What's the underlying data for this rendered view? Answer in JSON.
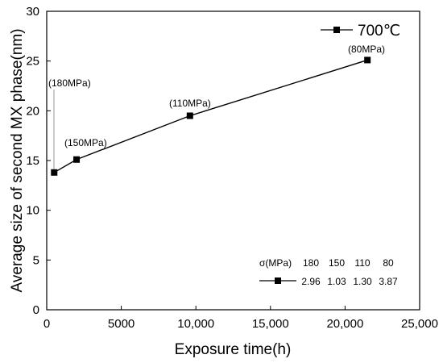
{
  "chart_data": {
    "type": "line",
    "xlabel": "Exposure time(h)",
    "ylabel": "Average size of second MX phase(nm)",
    "xlim": [
      0,
      25000
    ],
    "ylim": [
      0,
      30
    ],
    "x_ticks": [
      0,
      5000,
      10000,
      15000,
      20000,
      25000
    ],
    "x_tick_labels": [
      "0",
      "5000",
      "10,000",
      "15,000",
      "20,000",
      "25,000"
    ],
    "y_ticks": [
      0,
      5,
      10,
      15,
      20,
      25,
      30
    ],
    "y_tick_labels": [
      "0",
      "5",
      "10",
      "15",
      "20",
      "25",
      "30"
    ],
    "grid": false,
    "series": [
      {
        "name": "700℃",
        "marker": "square",
        "color": "#000000",
        "x": [
          500,
          2000,
          9600,
          21500
        ],
        "y": [
          13.8,
          15.1,
          19.5,
          25.1
        ]
      }
    ],
    "legend": {
      "position": "top-right",
      "label": "700℃"
    },
    "annotations": [
      "(180MPa)",
      "(150MPa)",
      "(110MPa)",
      "(80MPa)"
    ],
    "inset_table": {
      "header_label": "σ(MPa)",
      "header_values": [
        "180",
        "150",
        "110",
        "80"
      ],
      "row_values": [
        "2.96",
        "1.03",
        "1.30",
        "3.87"
      ]
    }
  }
}
